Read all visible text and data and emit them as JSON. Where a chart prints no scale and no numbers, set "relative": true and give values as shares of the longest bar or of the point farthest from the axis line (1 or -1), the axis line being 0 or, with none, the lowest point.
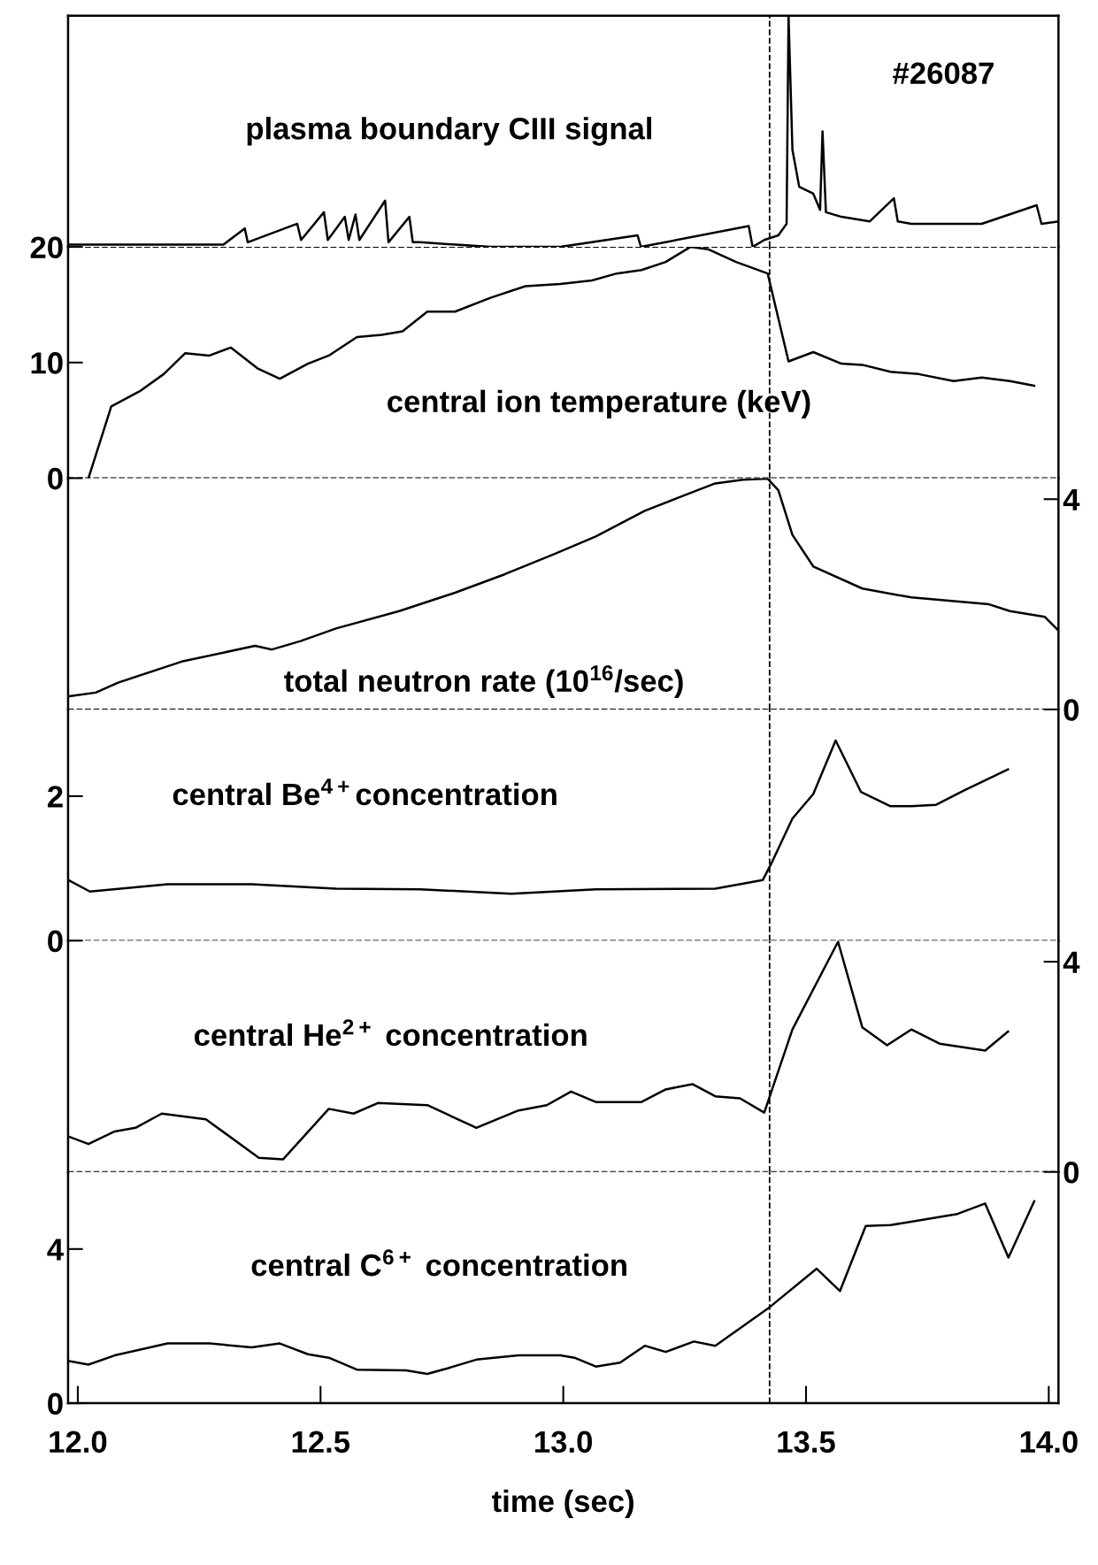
{
  "chart_data": [
    {
      "type": "line",
      "relative": true,
      "xlim": [
        11.98,
        14.02
      ],
      "tick_labels": false,
      "annotations": [
        "plasma boundary CIII signal",
        "#26087"
      ],
      "ref_lines": [
        {
          "axis": "x",
          "value": 13.425,
          "color": "#000000",
          "line_style": "dashed"
        }
      ],
      "series": [
        {
          "color": "#000000",
          "x": [
            11.98,
            12.3,
            12.344,
            12.35,
            12.452,
            12.46,
            12.507,
            12.515,
            12.55,
            12.558,
            12.572,
            12.58,
            12.633,
            12.64,
            12.683,
            12.69,
            12.705,
            12.85,
            12.994,
            13.153,
            13.16,
            13.382,
            13.39,
            13.414,
            13.443,
            13.46,
            13.464,
            13.472,
            13.486,
            13.515,
            13.529,
            13.534,
            13.541,
            13.573,
            13.631,
            13.681,
            13.689,
            13.717,
            13.862,
            13.975,
            13.985,
            14.02
          ],
          "values": [
            0.01,
            0.01,
            0.08,
            0.02,
            0.1,
            0.03,
            0.15,
            0.03,
            0.13,
            0.03,
            0.14,
            0.03,
            0.2,
            0.02,
            0.13,
            0.02,
            0.02,
            0.0,
            0.0,
            0.05,
            0.0,
            0.09,
            0.0,
            0.03,
            0.05,
            0.1,
            1.0,
            0.42,
            0.26,
            0.23,
            0.16,
            0.5,
            0.15,
            0.13,
            0.11,
            0.21,
            0.11,
            0.1,
            0.1,
            0.18,
            0.1,
            0.11
          ]
        }
      ]
    },
    {
      "type": "line",
      "xlim": [
        11.98,
        14.02
      ],
      "ylim": [
        0,
        20
      ],
      "tick_labels": "y",
      "annotations": [
        "central ion temperature (keV)"
      ],
      "yticks": [
        0,
        10,
        20
      ],
      "ref_lines": [
        {
          "axis": "y",
          "value": 20,
          "color": "#000000",
          "line_style": "dashed"
        },
        {
          "axis": "y",
          "value": 0,
          "color": "#000000",
          "line_style": "dashed"
        },
        {
          "axis": "x",
          "value": 13.425,
          "color": "#000000",
          "line_style": "dashed"
        }
      ],
      "series": [
        {
          "color": "#000000",
          "x": [
            12.022,
            12.069,
            12.127,
            12.177,
            12.221,
            12.271,
            12.315,
            12.37,
            12.416,
            12.474,
            12.517,
            12.575,
            12.626,
            12.669,
            12.72,
            12.777,
            12.85,
            12.922,
            12.994,
            13.059,
            13.11,
            13.161,
            13.211,
            13.262,
            13.298,
            13.356,
            13.421,
            13.464,
            13.515,
            13.573,
            13.616,
            13.674,
            13.732,
            13.804,
            13.862,
            13.92,
            13.97
          ],
          "values": [
            0,
            6.2,
            7.5,
            9.0,
            10.8,
            10.6,
            11.3,
            9.5,
            8.6,
            9.9,
            10.6,
            12.2,
            12.4,
            12.7,
            14.4,
            14.4,
            15.6,
            16.6,
            16.8,
            17.1,
            17.7,
            18.0,
            18.7,
            20.0,
            19.8,
            18.7,
            17.7,
            10.1,
            10.9,
            9.9,
            9.8,
            9.2,
            9.0,
            8.4,
            8.7,
            8.4,
            8.0
          ]
        }
      ]
    },
    {
      "type": "line",
      "xlim": [
        11.98,
        14.02
      ],
      "y2lim": [
        0,
        4.4
      ],
      "tick_labels": "y",
      "annotations": [
        "total neutron rate (10$^{16}$/sec)"
      ],
      "y2ticks": [
        0,
        4
      ],
      "ref_lines": [
        {
          "axis": "y2",
          "value": 0,
          "color": "#000000",
          "line_style": "dashed"
        },
        {
          "axis": "x",
          "value": 13.425,
          "color": "#000000",
          "line_style": "dashed"
        }
      ],
      "series": [
        {
          "color": "#000000",
          "axis": "y2",
          "x": [
            11.982,
            12.037,
            12.083,
            12.214,
            12.365,
            12.4,
            12.459,
            12.532,
            12.662,
            12.777,
            12.879,
            12.98,
            13.067,
            13.168,
            13.24,
            13.313,
            13.37,
            13.421,
            13.443,
            13.472,
            13.515,
            13.616,
            13.717,
            13.877,
            13.92,
            13.992,
            14.02
          ],
          "values": [
            0.25,
            0.32,
            0.51,
            0.91,
            1.21,
            1.14,
            1.3,
            1.54,
            1.87,
            2.22,
            2.57,
            2.95,
            3.29,
            3.78,
            4.04,
            4.3,
            4.37,
            4.39,
            4.17,
            3.32,
            2.72,
            2.3,
            2.13,
            2.0,
            1.87,
            1.76,
            1.5
          ]
        }
      ]
    },
    {
      "type": "line",
      "xlim": [
        11.98,
        14.02
      ],
      "ylim": [
        0,
        3.2
      ],
      "tick_labels": "y",
      "annotations": [
        "central Be$^{4+}$concentration"
      ],
      "yticks": [
        0,
        2
      ],
      "ref_lines": [
        {
          "axis": "y",
          "value": 0,
          "color": "#000000",
          "line_style": "dashed"
        },
        {
          "axis": "x",
          "value": 13.425,
          "color": "#000000",
          "line_style": "dashed"
        }
      ],
      "series": [
        {
          "color": "#000000",
          "x": [
            11.98,
            12.025,
            12.185,
            12.358,
            12.532,
            12.705,
            12.893,
            13.067,
            13.313,
            13.411,
            13.428,
            13.472,
            13.515,
            13.561,
            13.613,
            13.674,
            13.717,
            13.768,
            13.826,
            13.916
          ],
          "values": [
            0.84,
            0.68,
            0.78,
            0.78,
            0.72,
            0.71,
            0.65,
            0.71,
            0.72,
            0.84,
            1.06,
            1.69,
            2.03,
            2.77,
            2.06,
            1.86,
            1.86,
            1.88,
            2.08,
            2.37
          ]
        }
      ]
    },
    {
      "type": "line",
      "xlim": [
        11.98,
        14.02
      ],
      "y2lim": [
        0,
        4.4
      ],
      "tick_labels": "y",
      "annotations": [
        "central He$^{2+}$ concentration"
      ],
      "y2ticks": [
        0,
        4
      ],
      "ref_lines": [
        {
          "axis": "y2",
          "value": 0,
          "color": "#000000",
          "line_style": "dashed"
        },
        {
          "axis": "x",
          "value": 13.425,
          "color": "#000000",
          "line_style": "dashed"
        }
      ],
      "series": [
        {
          "color": "#000000",
          "axis": "y2",
          "x": [
            11.982,
            12.022,
            12.076,
            12.119,
            12.173,
            12.264,
            12.373,
            12.423,
            12.517,
            12.568,
            12.618,
            12.72,
            12.821,
            12.908,
            12.966,
            13.016,
            13.067,
            13.161,
            13.211,
            13.266,
            13.313,
            13.364,
            13.414,
            13.472,
            13.566,
            13.616,
            13.667,
            13.717,
            13.775,
            13.869,
            13.916
          ],
          "values": [
            0.67,
            0.53,
            0.77,
            0.84,
            1.11,
            1.0,
            0.27,
            0.24,
            1.2,
            1.11,
            1.31,
            1.27,
            0.84,
            1.17,
            1.27,
            1.53,
            1.33,
            1.33,
            1.57,
            1.67,
            1.44,
            1.4,
            1.13,
            2.71,
            4.38,
            2.75,
            2.41,
            2.71,
            2.44,
            2.31,
            2.67
          ]
        }
      ]
    },
    {
      "type": "line",
      "xlim": [
        11.98,
        14.02
      ],
      "ylim": [
        0,
        6.0
      ],
      "xlabel": "time (sec)",
      "annotations": [
        "central C$^{6+}$ concentration"
      ],
      "yticks": [
        0,
        4
      ],
      "xticks": [
        {
          "value": 12.0,
          "label": "12.0"
        },
        {
          "value": 12.5,
          "label": "12.5"
        },
        {
          "value": 13.0,
          "label": "13.0"
        },
        {
          "value": 13.5,
          "label": "13.5"
        },
        {
          "value": 14.0,
          "label": "14.0"
        }
      ],
      "ref_lines": [
        {
          "axis": "x",
          "value": 13.425,
          "color": "#000000",
          "line_style": "dashed"
        }
      ],
      "series": [
        {
          "color": "#000000",
          "x": [
            11.982,
            12.022,
            12.076,
            12.185,
            12.271,
            12.358,
            12.416,
            12.474,
            12.517,
            12.575,
            12.676,
            12.72,
            12.763,
            12.821,
            12.908,
            12.994,
            13.023,
            13.067,
            13.117,
            13.168,
            13.211,
            13.269,
            13.313,
            13.421,
            13.522,
            13.57,
            13.623,
            13.674,
            13.812,
            13.869,
            13.917,
            13.97
          ],
          "values": [
            1.09,
            1.0,
            1.24,
            1.55,
            1.55,
            1.45,
            1.55,
            1.27,
            1.18,
            0.87,
            0.85,
            0.76,
            0.91,
            1.13,
            1.24,
            1.24,
            1.18,
            0.95,
            1.05,
            1.49,
            1.33,
            1.6,
            1.49,
            2.45,
            3.49,
            2.91,
            4.6,
            4.62,
            4.91,
            5.18,
            3.78,
            5.24
          ]
        }
      ]
    }
  ]
}
